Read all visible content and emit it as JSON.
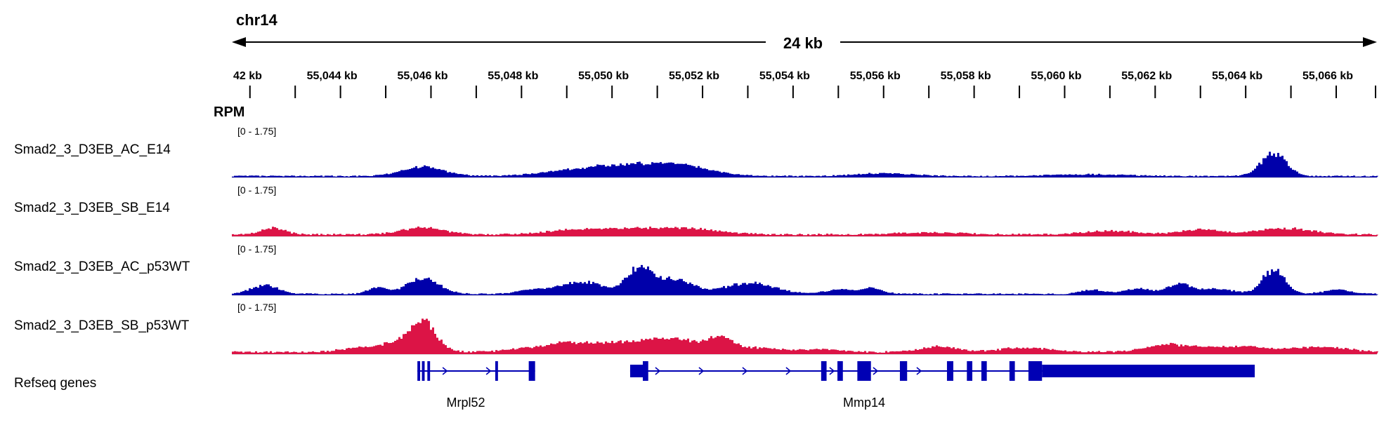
{
  "browser": {
    "chromosome": "chr14",
    "span_label": "24 kb",
    "ruler_ticks": [
      "42 kb",
      "55,044 kb",
      "55,046 kb",
      "55,048 kb",
      "55,050 kb",
      "55,052 kb",
      "55,054 kb",
      "55,056 kb",
      "55,058 kb",
      "55,060 kb",
      "55,062 kb",
      "55,064 kb",
      "55,066 kb"
    ],
    "units_label": "RPM"
  },
  "colors": {
    "blue": "#0000aa",
    "red": "#dc1446",
    "gene": "#0000b4"
  },
  "tracks": [
    {
      "name": "Smad2_3_D3EB_AC_E14",
      "range": "[0 - 1.75]",
      "color": "blue",
      "peaks": [
        [
          55045.8,
          0.34,
          0.45
        ],
        [
          55049.2,
          0.14,
          0.8
        ],
        [
          55050.6,
          0.36,
          1.0
        ],
        [
          55051.6,
          0.18,
          0.6
        ],
        [
          55056.0,
          0.1,
          0.6
        ],
        [
          55060.5,
          0.06,
          0.8
        ],
        [
          55064.6,
          0.78,
          0.28
        ]
      ],
      "baseline": 0.05
    },
    {
      "name": "Smad2_3_D3EB_SB_E14",
      "range": "[0 - 1.75]",
      "color": "red",
      "peaks": [
        [
          55042.5,
          0.22,
          0.25
        ],
        [
          55045.8,
          0.24,
          0.45
        ],
        [
          55049.1,
          0.14,
          0.6
        ],
        [
          55050.6,
          0.22,
          0.8
        ],
        [
          55051.9,
          0.14,
          0.6
        ],
        [
          55057.0,
          0.07,
          0.7
        ],
        [
          55061.0,
          0.12,
          0.6
        ],
        [
          55063.0,
          0.18,
          0.4
        ],
        [
          55064.8,
          0.22,
          0.6
        ]
      ],
      "baseline": 0.07
    },
    {
      "name": "Smad2_3_D3EB_AC_p53WT",
      "range": "[0 - 1.75]",
      "color": "blue",
      "peaks": [
        [
          55042.3,
          0.3,
          0.3
        ],
        [
          55044.8,
          0.24,
          0.2
        ],
        [
          55045.8,
          0.56,
          0.35
        ],
        [
          55048.2,
          0.14,
          0.3
        ],
        [
          55049.3,
          0.42,
          0.5
        ],
        [
          55050.6,
          0.92,
          0.28
        ],
        [
          55051.4,
          0.52,
          0.35
        ],
        [
          55053.0,
          0.38,
          0.55
        ],
        [
          55055.0,
          0.14,
          0.3
        ],
        [
          55055.7,
          0.2,
          0.25
        ],
        [
          55060.6,
          0.14,
          0.25
        ],
        [
          55061.6,
          0.18,
          0.3
        ],
        [
          55062.5,
          0.34,
          0.25
        ],
        [
          55063.3,
          0.18,
          0.4
        ],
        [
          55064.6,
          0.86,
          0.25
        ],
        [
          55066.0,
          0.14,
          0.3
        ]
      ],
      "baseline": 0.05
    },
    {
      "name": "Smad2_3_D3EB_SB_p53WT",
      "range": "[0 - 1.75]",
      "color": "red",
      "peaks": [
        [
          55044.4,
          0.14,
          0.4
        ],
        [
          55045.2,
          0.3,
          0.35
        ],
        [
          55045.8,
          1.1,
          0.28
        ],
        [
          55048.2,
          0.12,
          0.5
        ],
        [
          55049.0,
          0.26,
          0.45
        ],
        [
          55050.3,
          0.34,
          0.7
        ],
        [
          55051.5,
          0.36,
          0.6
        ],
        [
          55052.4,
          0.44,
          0.25
        ],
        [
          55053.2,
          0.14,
          0.4
        ],
        [
          55054.5,
          0.1,
          0.5
        ],
        [
          55057.2,
          0.18,
          0.4
        ],
        [
          55059.1,
          0.14,
          0.6
        ],
        [
          55062.3,
          0.26,
          0.5
        ],
        [
          55063.8,
          0.2,
          0.6
        ],
        [
          55065.6,
          0.18,
          0.6
        ]
      ],
      "baseline": 0.08
    }
  ],
  "genes_track": {
    "name": "Refseq genes",
    "genes": [
      {
        "name": "Mrpl52",
        "start": 55045.7,
        "end": 55048.3,
        "strand": "+",
        "exons": [
          [
            55045.7,
            55045.76
          ],
          [
            55045.8,
            55045.86
          ],
          [
            55045.92,
            55045.98
          ],
          [
            55047.42,
            55047.48
          ],
          [
            55048.16,
            55048.3
          ]
        ]
      },
      {
        "name": "Mmp14",
        "start": 55050.4,
        "end": 55064.2,
        "strand": "+",
        "exons": [
          [
            55050.4,
            55050.68
          ],
          [
            55050.68,
            55050.8
          ],
          [
            55054.62,
            55054.74
          ],
          [
            55054.98,
            55055.1
          ],
          [
            55055.42,
            55055.72
          ],
          [
            55056.36,
            55056.52
          ],
          [
            55057.4,
            55057.54
          ],
          [
            55057.84,
            55057.96
          ],
          [
            55058.16,
            55058.28
          ],
          [
            55058.78,
            55058.9
          ],
          [
            55059.2,
            55059.5
          ],
          [
            55059.5,
            55064.2
          ]
        ],
        "thick_exons": [
          [
            55059.2,
            55059.5
          ]
        ]
      }
    ]
  }
}
